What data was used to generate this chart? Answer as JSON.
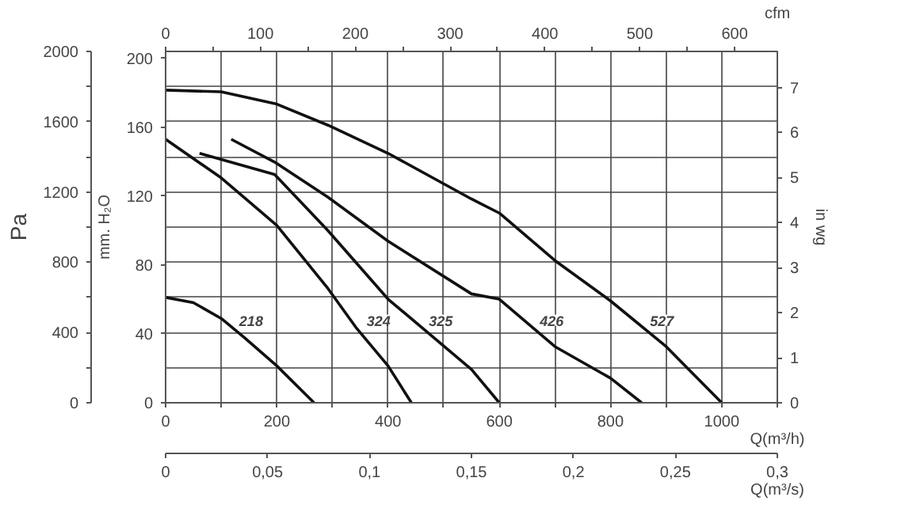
{
  "chart_data": {
    "type": "line",
    "xlabel": "Q(m³/h)",
    "xlim": [
      0,
      1100
    ],
    "xticks": [
      0,
      {
        "value": 100,
        "label": null
      },
      200,
      {
        "value": 300,
        "label": null
      },
      400,
      {
        "value": 500,
        "label": null
      },
      600,
      {
        "value": 700,
        "label": null
      },
      800,
      {
        "value": 900,
        "label": null
      },
      1000,
      {
        "value": 1100,
        "label": null
      }
    ],
    "x2label": "cfm",
    "x2lim": [
      0,
      645
    ],
    "x2ticks": [
      0,
      {
        "value": 50,
        "label": null
      },
      100,
      {
        "value": 150,
        "label": null
      },
      200,
      {
        "value": 250,
        "label": null
      },
      300,
      {
        "value": 350,
        "label": null
      },
      400,
      {
        "value": 450,
        "label": null
      },
      500,
      {
        "value": 550,
        "label": null
      },
      600
    ],
    "ylabel": "Pa",
    "ylim": [
      0,
      2000
    ],
    "yticks": [
      0,
      {
        "value": 200,
        "label": null
      },
      400,
      {
        "value": 600,
        "label": null
      },
      800,
      {
        "value": 1000,
        "label": null
      },
      1200,
      {
        "value": 1400,
        "label": null
      },
      1600,
      {
        "value": 1800,
        "label": null
      },
      2000
    ],
    "y2label": "mm. H₂O",
    "y2lim": [
      0,
      204
    ],
    "y2ticks": [
      0,
      40,
      80,
      120,
      160,
      200
    ],
    "y3label": "in wg",
    "y3lim": [
      0,
      7.8
    ],
    "y3ticks": [
      0,
      1,
      2,
      3,
      4,
      5,
      6,
      7
    ],
    "grid": true,
    "series": [
      {
        "name": "218",
        "color": "#111111",
        "x": [
          0,
          50,
          100,
          142,
          200,
          267
        ],
        "values": [
          600,
          570,
          480,
          370,
          210,
          0
        ]
      },
      {
        "name": "324",
        "color": "#111111",
        "x": [
          0,
          100,
          200,
          292,
          342,
          400,
          442
        ],
        "values": [
          1500,
          1280,
          1010,
          650,
          430,
          210,
          0
        ]
      },
      {
        "name": "325",
        "color": "#111111",
        "x": [
          61,
          196,
          292,
          400,
          550,
          600
        ],
        "values": [
          1420,
          1300,
          980,
          590,
          190,
          0
        ]
      },
      {
        "name": "426",
        "color": "#111111",
        "x": [
          118,
          196,
          292,
          400,
          550,
          600,
          700,
          800,
          856
        ],
        "values": [
          1500,
          1370,
          1170,
          920,
          620,
          590,
          320,
          140,
          0
        ]
      },
      {
        "name": "527",
        "color": "#111111",
        "x": [
          0,
          100,
          200,
          292,
          400,
          550,
          600,
          700,
          800,
          900,
          1000
        ],
        "values": [
          1780,
          1770,
          1700,
          1580,
          1420,
          1160,
          1080,
          810,
          580,
          320,
          0
        ]
      }
    ],
    "annotations": [
      "0",
      "0,05",
      "0,1",
      "0,15",
      "0,2",
      "0,25",
      "0,3",
      "Q(m³/s)"
    ]
  }
}
